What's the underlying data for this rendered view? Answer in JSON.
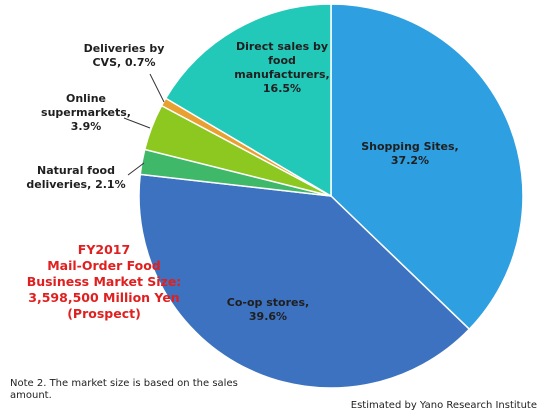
{
  "chart_data": {
    "type": "pie",
    "title": "FY2017 Mail-Order Food Business Market Size: 3,598,500 Million Yen (Prospect)",
    "title_lines": [
      "FY2017",
      "Mail-Order Food",
      "Business Market Size:",
      "3,598,500 Million Yen",
      "(Prospect)"
    ],
    "unit": "%",
    "slices": [
      {
        "name": "Shopping Sites",
        "value": 37.2,
        "color": "#2e9fe0",
        "label_lines": [
          "Shopping Sites,",
          "37.2%"
        ]
      },
      {
        "name": "Co-op stores",
        "value": 39.6,
        "color": "#3c72c0",
        "label_lines": [
          "Co-op  stores,",
          "39.6%"
        ]
      },
      {
        "name": "Natural food deliveries",
        "value": 2.1,
        "color": "#40b86a",
        "label_lines": [
          "Natural food",
          "deliveries, 2.1%"
        ]
      },
      {
        "name": "Online supermarkets",
        "value": 3.9,
        "color": "#8cc820",
        "label_lines": [
          "Online",
          "supermarkets,",
          "3.9%"
        ]
      },
      {
        "name": "Deliveries by CVS",
        "value": 0.7,
        "color": "#e8a030",
        "label_lines": [
          "Deliveries by",
          "CVS, 0.7%"
        ]
      },
      {
        "name": "Direct sales by food manufacturers",
        "value": 16.5,
        "color": "#22c8b8",
        "label_lines": [
          "Direct sales by",
          "food",
          "manufacturers,",
          "16.5%"
        ]
      }
    ]
  },
  "footer": {
    "note": "Note 2. The market size is based on the sales amount.",
    "credit": "Estimated by Yano Research Institute"
  }
}
